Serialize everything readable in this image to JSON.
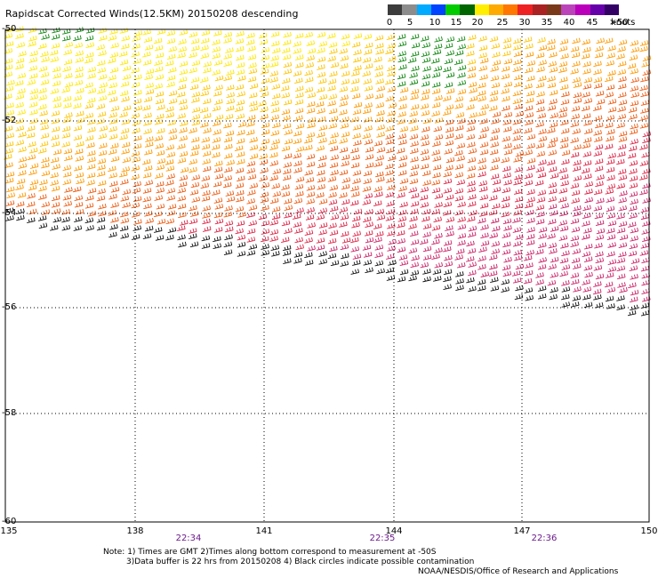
{
  "title": "Rapidscat Corrected Winds(12.5KM) 20150208 descending",
  "legend": {
    "colors": [
      "#3c3c3c",
      "#8c8c8c",
      "#00aaff",
      "#0044ff",
      "#00cc00",
      "#006600",
      "#ffee00",
      "#ffaa00",
      "#ff7700",
      "#ee2222",
      "#aa2222",
      "#7a3a1a",
      "#bb44bb",
      "#bb00bb",
      "#6600aa",
      "#330066"
    ],
    "ticks": [
      "0",
      "5",
      "10",
      "15",
      "20",
      "25",
      "30",
      "35",
      "40",
      "45",
      ">50"
    ],
    "unit": "knots"
  },
  "axes": {
    "x_labels": [
      "135",
      "138",
      "141",
      "144",
      "147",
      "150"
    ],
    "y_labels": [
      "-50",
      "-52",
      "-54",
      "-56",
      "-58",
      "-60"
    ]
  },
  "times": [
    "22:34",
    "22:35",
    "22:36"
  ],
  "notes": {
    "line1": "Note: 1) Times are GMT 2)Times along bottom correspond to measurement at -50S",
    "line2": "3)Data buffer is 22 hrs from 20150208 4) Black circles indicate possible contamination",
    "credit": "NOAA/NESDIS/Office of Research and Applications"
  }
}
